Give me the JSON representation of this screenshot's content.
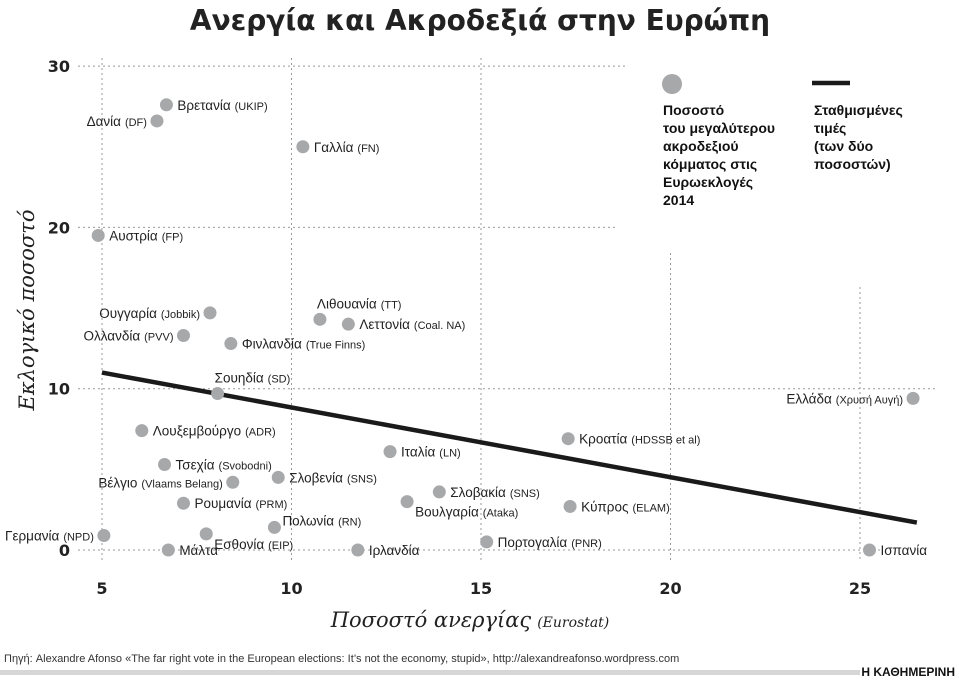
{
  "chart_data": {
    "type": "scatter",
    "title": "Ανεργία και Ακροδεξιά στην Ευρώπη",
    "xlabel": "Ποσοστό ανεργίας",
    "xlabel_note": "(Eurostat)",
    "ylabel": "Εκλογικό ποσοστό",
    "xlim": [
      5,
      26.5
    ],
    "ylim": [
      0,
      30
    ],
    "xticks": [
      "5",
      "10",
      "15",
      "20",
      "25"
    ],
    "yticks": [
      "0",
      "10",
      "20",
      "30"
    ],
    "grid": true,
    "legend_placement": "top-right",
    "legend": {
      "points_label": [
        "Ποσοστό",
        "του μεγαλύτερου",
        "ακροδεξιού",
        "κόμματος στις",
        "Ευρωεκλογές",
        "2014"
      ],
      "line_label": [
        "Σταθμισμένες",
        "τιμές",
        "(των δύο",
        "ποσοστών)"
      ]
    },
    "colors": {
      "point": "#a7a8aa",
      "line": "#1a1a1a"
    },
    "trendline": {
      "x": [
        5,
        26.5
      ],
      "y": [
        11.0,
        1.7
      ]
    },
    "points": [
      {
        "name": "Βρετανία",
        "party": "(UKIP)",
        "x": 6.7,
        "y": 27.6,
        "label": "right"
      },
      {
        "name": "Δανία",
        "party": "(DF)",
        "x": 6.45,
        "y": 26.6,
        "label": "left"
      },
      {
        "name": "Γαλλία",
        "party": "(FN)",
        "x": 10.3,
        "y": 25.0,
        "label": "right"
      },
      {
        "name": "Αυστρία",
        "party": "(FP)",
        "x": 4.9,
        "y": 19.5,
        "label": "right"
      },
      {
        "name": "Ουγγαρία",
        "party": "(Jobbik)",
        "x": 7.85,
        "y": 14.7,
        "label": "left"
      },
      {
        "name": "Ολλανδία",
        "party": "(PVV)",
        "x": 7.15,
        "y": 13.3,
        "label": "left"
      },
      {
        "name": "Φινλανδία",
        "party": "(True Finns)",
        "x": 8.4,
        "y": 12.8,
        "label": "right"
      },
      {
        "name": "Λιθουανία",
        "party": "(TT)",
        "x": 10.75,
        "y": 14.3,
        "label": "above"
      },
      {
        "name": "Λεττονία",
        "party": "(Coal. NA)",
        "x": 11.5,
        "y": 14.0,
        "label": "right"
      },
      {
        "name": "Σουηδία",
        "party": "(SD)",
        "x": 8.05,
        "y": 9.7,
        "label": "above"
      },
      {
        "name": "Ελλάδα",
        "party": "(Χρυσή Αυγή)",
        "x": 26.4,
        "y": 9.4,
        "label": "left"
      },
      {
        "name": "Λουξεμβούργο",
        "party": "(ADR)",
        "x": 6.05,
        "y": 7.4,
        "label": "right"
      },
      {
        "name": "Κροατία",
        "party": "(HDSSB et al)",
        "x": 17.3,
        "y": 6.9,
        "label": "right"
      },
      {
        "name": "Ιταλία",
        "party": "(LN)",
        "x": 12.6,
        "y": 6.1,
        "label": "right"
      },
      {
        "name": "Τσεχία",
        "party": "(Svobodni)",
        "x": 6.65,
        "y": 5.3,
        "label": "right"
      },
      {
        "name": "Σλοβενία",
        "party": "(SNS)",
        "x": 9.65,
        "y": 4.5,
        "label": "right"
      },
      {
        "name": "Βέλγιο",
        "party": "(Vlaams Belang)",
        "x": 8.45,
        "y": 4.2,
        "label": "left"
      },
      {
        "name": "Σλοβακία",
        "party": "(SNS)",
        "x": 13.9,
        "y": 3.6,
        "label": "right"
      },
      {
        "name": "Βουλγαρία",
        "party": "(Ataka)",
        "x": 13.05,
        "y": 3.0,
        "label": "below-right"
      },
      {
        "name": "Ρουμανία",
        "party": "(PRM)",
        "x": 7.15,
        "y": 2.9,
        "label": "right"
      },
      {
        "name": "Κύπρος",
        "party": "(ELAM)",
        "x": 17.35,
        "y": 2.7,
        "label": "right"
      },
      {
        "name": "Πολωνία",
        "party": "(RN)",
        "x": 9.55,
        "y": 1.4,
        "label": "above-right"
      },
      {
        "name": "Εσθονία",
        "party": "(EIP)",
        "x": 7.75,
        "y": 1.0,
        "label": "below-right"
      },
      {
        "name": "Γερμανία",
        "party": "(NPD)",
        "x": 5.05,
        "y": 0.9,
        "label": "left"
      },
      {
        "name": "Πορτογαλία",
        "party": "(PNR)",
        "x": 15.15,
        "y": 0.5,
        "label": "right"
      },
      {
        "name": "Μάλτα",
        "party": "",
        "x": 6.75,
        "y": 0,
        "label": "right"
      },
      {
        "name": "Ιρλανδία",
        "party": "",
        "x": 11.75,
        "y": 0,
        "label": "right"
      },
      {
        "name": "Ισπανία",
        "party": "",
        "x": 25.25,
        "y": 0,
        "label": "right"
      }
    ]
  },
  "footer": {
    "source": "Πηγή: Alexandre Afonso «The far right vote in the European elections: It’s not the economy, stupid», http://alexandreafonso.wordpress.com",
    "brand": "Η ΚΑΘΗΜΕΡΙΝΗ"
  }
}
